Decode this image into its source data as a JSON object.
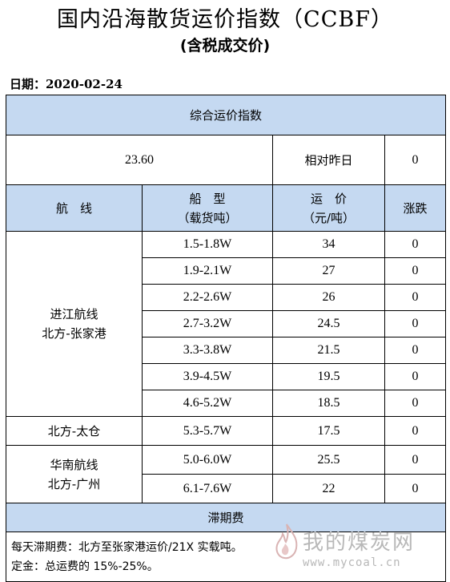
{
  "header": {
    "title": "国内沿海散货运价指数（CCBF）",
    "subtitle": "(含税成交价)",
    "date": "日期：2020-02-24"
  },
  "summary": {
    "section_label": "综合运价指数",
    "index_value": "23.60",
    "compare_label": "相对昨日",
    "compare_value": "0"
  },
  "columns": {
    "route": "航　线",
    "ship_type_l1": "船　型",
    "ship_type_l2": "（载货吨）",
    "rate_l1": "运　价",
    "rate_l2": "（元/吨）",
    "change": "涨跌"
  },
  "groups": [
    {
      "route_l1": "进江航线",
      "route_l2": "北方-张家港",
      "rows": [
        {
          "ship": "1.5-1.8W",
          "rate": "34",
          "change": "0"
        },
        {
          "ship": "1.9-2.1W",
          "rate": "27",
          "change": "0"
        },
        {
          "ship": "2.2-2.6W",
          "rate": "26",
          "change": "0"
        },
        {
          "ship": "2.7-3.2W",
          "rate": "24.5",
          "change": "0"
        },
        {
          "ship": "3.3-3.8W",
          "rate": "21.5",
          "change": "0"
        },
        {
          "ship": "3.9-4.5W",
          "rate": "19.5",
          "change": "0"
        },
        {
          "ship": "4.6-5.2W",
          "rate": "18.5",
          "change": "0"
        }
      ]
    },
    {
      "route_l1": "北方-太仓",
      "route_l2": "",
      "rows": [
        {
          "ship": "5.3-5.7W",
          "rate": "17.5",
          "change": "0"
        }
      ]
    },
    {
      "route_l1": "华南航线",
      "route_l2": "北方-广州",
      "rows": [
        {
          "ship": "5.0-6.0W",
          "rate": "25.5",
          "change": "0"
        },
        {
          "ship": "6.1-7.6W",
          "rate": "22",
          "change": "0"
        }
      ]
    }
  ],
  "demurrage": {
    "section_label": "滞期费",
    "line1": "每天滞期费：北方至张家港运价/21X 实载吨。",
    "line2": "定金：总运费的 15%-25%。"
  },
  "watermark": {
    "text": "我的煤炭网",
    "url": "www.mycoal.cn",
    "color": "#b8b8b8"
  }
}
